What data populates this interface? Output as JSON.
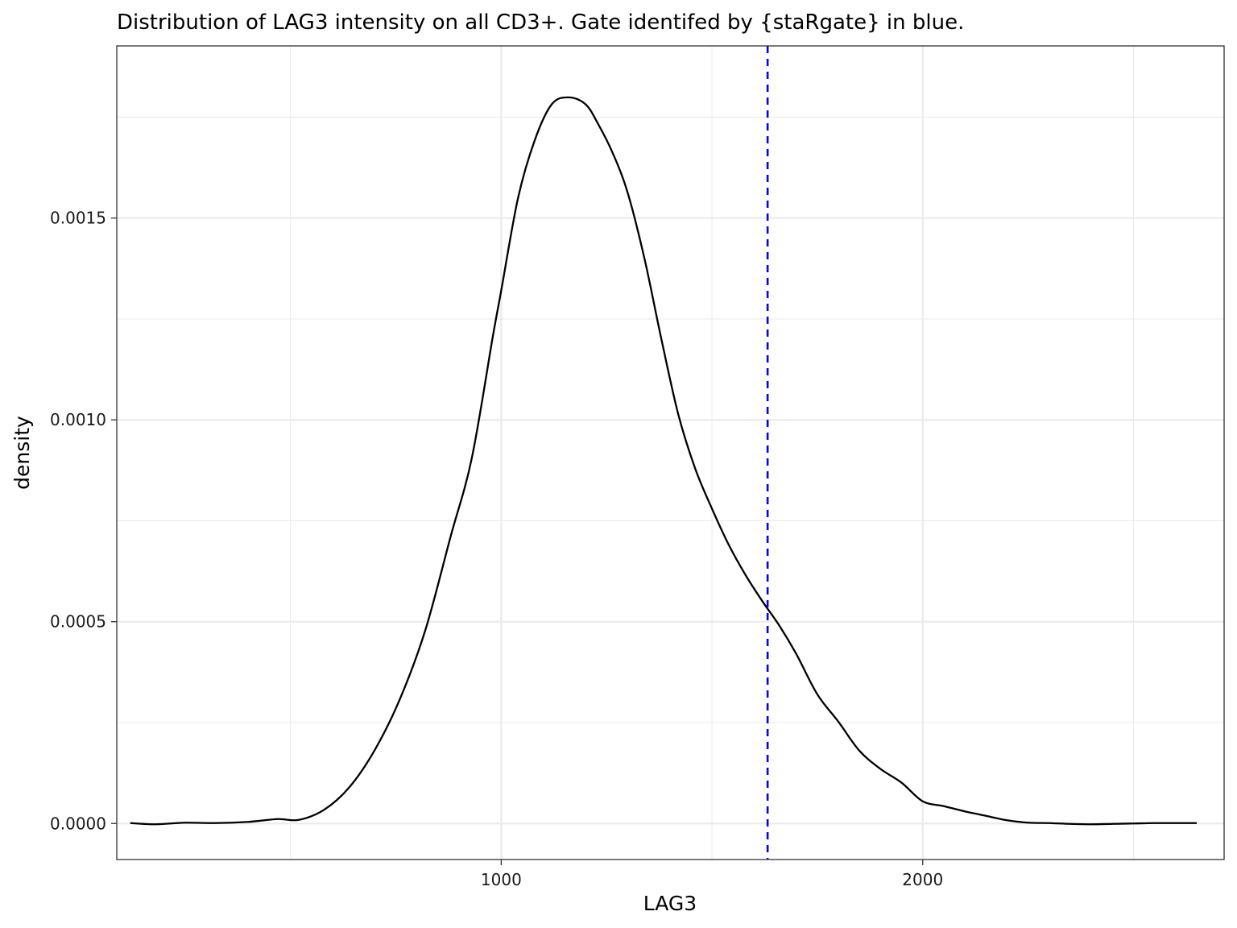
{
  "chart_data": {
    "type": "line",
    "title": "Distribution of LAG3 intensity on all CD3+. Gate identifed by {staRgate} in blue.",
    "xlabel": "LAG3",
    "ylabel": "density",
    "xlim": [
      88,
      2715
    ],
    "ylim": [
      -8.93e-05,
      0.0019265
    ],
    "x_ticks": [
      {
        "value": 1000,
        "label": "1000"
      },
      {
        "value": 2000,
        "label": "2000"
      }
    ],
    "x_minor_ticks": [
      500,
      1500,
      2500
    ],
    "y_ticks": [
      {
        "value": 0.0,
        "label": "0.0000"
      },
      {
        "value": 0.0005,
        "label": "0.0005"
      },
      {
        "value": 0.001,
        "label": "0.0010"
      },
      {
        "value": 0.0015,
        "label": "0.0015"
      }
    ],
    "y_minor_ticks": [
      0.00025,
      0.00075,
      0.00125,
      0.00175
    ],
    "grid": true,
    "gate": {
      "x": 1632,
      "color": "#0000ff",
      "style": "dashed"
    },
    "series": [
      {
        "color": "#000000",
        "x": [
          120,
          180,
          250,
          320,
          400,
          470,
          520,
          580,
          640,
          700,
          760,
          820,
          880,
          930,
          980,
          1000,
          1040,
          1080,
          1120,
          1160,
          1200,
          1230,
          1265,
          1300,
          1340,
          1380,
          1420,
          1460,
          1500,
          1540,
          1580,
          1620,
          1660,
          1700,
          1750,
          1800,
          1850,
          1900,
          1950,
          2000,
          2050,
          2100,
          2150,
          2200,
          2250,
          2300,
          2350,
          2400,
          2450,
          2500,
          2550,
          2600,
          2650
        ],
        "y": [
          1e-06,
          -2e-06,
          2e-06,
          1e-06,
          4e-06,
          1.1e-05,
          9e-06,
          3.4e-05,
          9e-05,
          0.000182,
          0.000309,
          0.000479,
          0.000711,
          0.000904,
          0.001206,
          0.00132,
          0.00155,
          0.001694,
          0.001782,
          0.001799,
          0.001782,
          0.001733,
          0.00166,
          0.001563,
          0.001399,
          0.0012,
          0.001014,
          0.00088,
          0.00078,
          0.00069,
          0.000615,
          0.00055,
          0.00049,
          0.00042,
          0.00032,
          0.000252,
          0.00018,
          0.000135,
          0.000101,
          5.5e-05,
          4.3e-05,
          3e-05,
          1.9e-05,
          8e-06,
          2e-06,
          1e-06,
          -1e-06,
          -2e-06,
          -1e-06,
          0.0,
          1e-06,
          1e-06,
          1e-06
        ]
      }
    ]
  }
}
